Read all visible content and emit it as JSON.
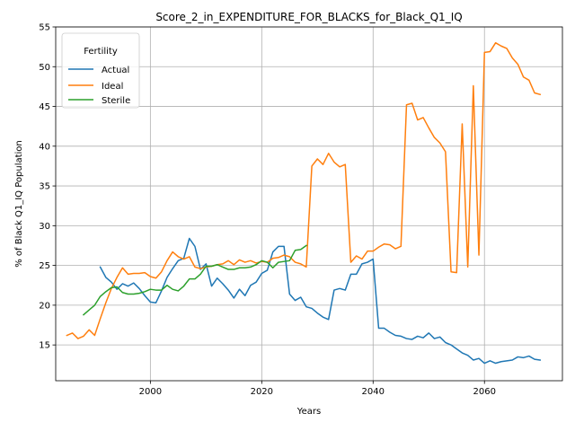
{
  "chart_data": {
    "type": "line",
    "title": "Score_2_in_EXPENDITURE_FOR_BLACKS_for_Black_Q1_IQ",
    "xlabel": "Years",
    "ylabel": "% of Black Q1_IQ Population",
    "xlim": [
      1983,
      2074
    ],
    "ylim": [
      10.5,
      55
    ],
    "xticks": [
      2000,
      2020,
      2040,
      2060
    ],
    "yticks": [
      15,
      20,
      25,
      30,
      35,
      40,
      45,
      50,
      55
    ],
    "grid": true,
    "legend": {
      "title": "Fertility",
      "placement": "upper-left"
    },
    "series": [
      {
        "name": "Actual",
        "color": "#1f77b4",
        "x": [
          1991,
          1992,
          1993,
          1994,
          1995,
          1996,
          1997,
          1998,
          1999,
          2000,
          2001,
          2002,
          2003,
          2004,
          2005,
          2006,
          2007,
          2008,
          2009,
          2010,
          2011,
          2012,
          2013,
          2014,
          2015,
          2016,
          2017,
          2018,
          2019,
          2020,
          2021,
          2022,
          2023,
          2024,
          2025,
          2026,
          2027,
          2028,
          2029,
          2030,
          2031,
          2032,
          2033,
          2034,
          2035,
          2036,
          2037,
          2038,
          2039,
          2040,
          2041,
          2042,
          2043,
          2044,
          2045,
          2046,
          2047,
          2048,
          2049,
          2050,
          2051,
          2052,
          2053,
          2054,
          2055,
          2056,
          2057,
          2058,
          2059,
          2060,
          2061,
          2062,
          2063,
          2064,
          2065,
          2066,
          2067,
          2068,
          2069,
          2070
        ],
        "values": [
          24.8,
          23.5,
          22.9,
          22.0,
          22.7,
          22.4,
          22.8,
          22.1,
          21.2,
          20.4,
          20.3,
          21.8,
          23.5,
          24.6,
          25.6,
          25.9,
          28.4,
          27.4,
          24.5,
          25.2,
          22.4,
          23.4,
          22.7,
          21.9,
          20.9,
          22.0,
          21.2,
          22.5,
          22.9,
          24.0,
          24.4,
          26.7,
          27.4,
          27.4,
          21.4,
          20.6,
          21.0,
          19.8,
          19.6,
          19.0,
          18.5,
          18.2,
          21.9,
          22.1,
          21.9,
          23.9,
          23.9,
          25.2,
          25.4,
          25.8,
          17.1,
          17.1,
          16.6,
          16.2,
          16.1,
          15.8,
          15.7,
          16.1,
          15.9,
          16.5,
          15.8,
          16.0,
          15.3,
          15.0,
          14.5,
          14.0,
          13.7,
          13.1,
          13.3,
          12.7,
          13.0,
          12.7,
          12.9,
          13.0,
          13.1,
          13.5,
          13.4,
          13.6,
          13.2,
          13.1
        ]
      },
      {
        "name": "Ideal",
        "color": "#ff7f0e",
        "x": [
          1985,
          1986,
          1987,
          1988,
          1989,
          1990,
          1991,
          1992,
          1993,
          1994,
          1995,
          1996,
          1997,
          1998,
          1999,
          2000,
          2001,
          2002,
          2003,
          2004,
          2005,
          2006,
          2007,
          2008,
          2009,
          2010,
          2011,
          2012,
          2013,
          2014,
          2015,
          2016,
          2017,
          2018,
          2019,
          2020,
          2021,
          2022,
          2023,
          2024,
          2025,
          2026,
          2027,
          2028,
          2029,
          2030,
          2031,
          2032,
          2033,
          2034,
          2035,
          2036,
          2037,
          2038,
          2039,
          2040,
          2041,
          2042,
          2043,
          2044,
          2045,
          2046,
          2047,
          2048,
          2049,
          2050,
          2051,
          2052,
          2053,
          2054,
          2055,
          2056,
          2057,
          2058,
          2059,
          2060,
          2061,
          2062,
          2063,
          2064,
          2065,
          2066,
          2067,
          2068,
          2069,
          2070
        ],
        "values": [
          16.2,
          16.5,
          15.8,
          16.1,
          16.9,
          16.2,
          18.3,
          20.3,
          22.1,
          23.5,
          24.7,
          23.9,
          24.0,
          24.0,
          24.1,
          23.6,
          23.4,
          24.2,
          25.6,
          26.7,
          26.1,
          25.8,
          26.1,
          24.8,
          24.6,
          24.8,
          24.9,
          25.1,
          25.2,
          25.6,
          25.1,
          25.7,
          25.4,
          25.6,
          25.3,
          25.5,
          25.4,
          25.9,
          26.0,
          26.3,
          26.1,
          25.4,
          25.2,
          24.8,
          37.5,
          38.4,
          37.7,
          39.1,
          38.0,
          37.4,
          37.7,
          25.4,
          26.2,
          25.8,
          26.8,
          26.8,
          27.3,
          27.7,
          27.6,
          27.1,
          27.4,
          45.2,
          45.4,
          43.3,
          43.6,
          42.3,
          41.1,
          40.4,
          39.3,
          24.2,
          24.1,
          42.8,
          24.8,
          47.6,
          26.3,
          51.8,
          51.9,
          53.0,
          52.6,
          52.3,
          51.1,
          50.3,
          48.7,
          48.3,
          46.7,
          46.5
        ]
      },
      {
        "name": "Sterile",
        "color": "#2ca02c",
        "x": [
          1988,
          1989,
          1990,
          1991,
          1992,
          1993,
          1994,
          1995,
          1996,
          1997,
          1998,
          1999,
          2000,
          2001,
          2002,
          2003,
          2004,
          2005,
          2006,
          2007,
          2008,
          2009,
          2010,
          2011,
          2012,
          2013,
          2014,
          2015,
          2016,
          2017,
          2018,
          2019,
          2020,
          2021,
          2022,
          2023,
          2024,
          2025,
          2026,
          2027,
          2028
        ],
        "values": [
          18.8,
          19.4,
          20.0,
          21.1,
          21.7,
          22.2,
          22.3,
          21.6,
          21.4,
          21.4,
          21.5,
          21.7,
          22.0,
          21.9,
          21.9,
          22.5,
          22.0,
          21.8,
          22.4,
          23.3,
          23.3,
          23.9,
          24.9,
          24.9,
          25.1,
          24.8,
          24.5,
          24.5,
          24.7,
          24.7,
          24.8,
          25.1,
          25.6,
          25.4,
          24.7,
          25.4,
          25.5,
          25.6,
          26.9,
          27.0,
          27.5
        ]
      }
    ]
  }
}
